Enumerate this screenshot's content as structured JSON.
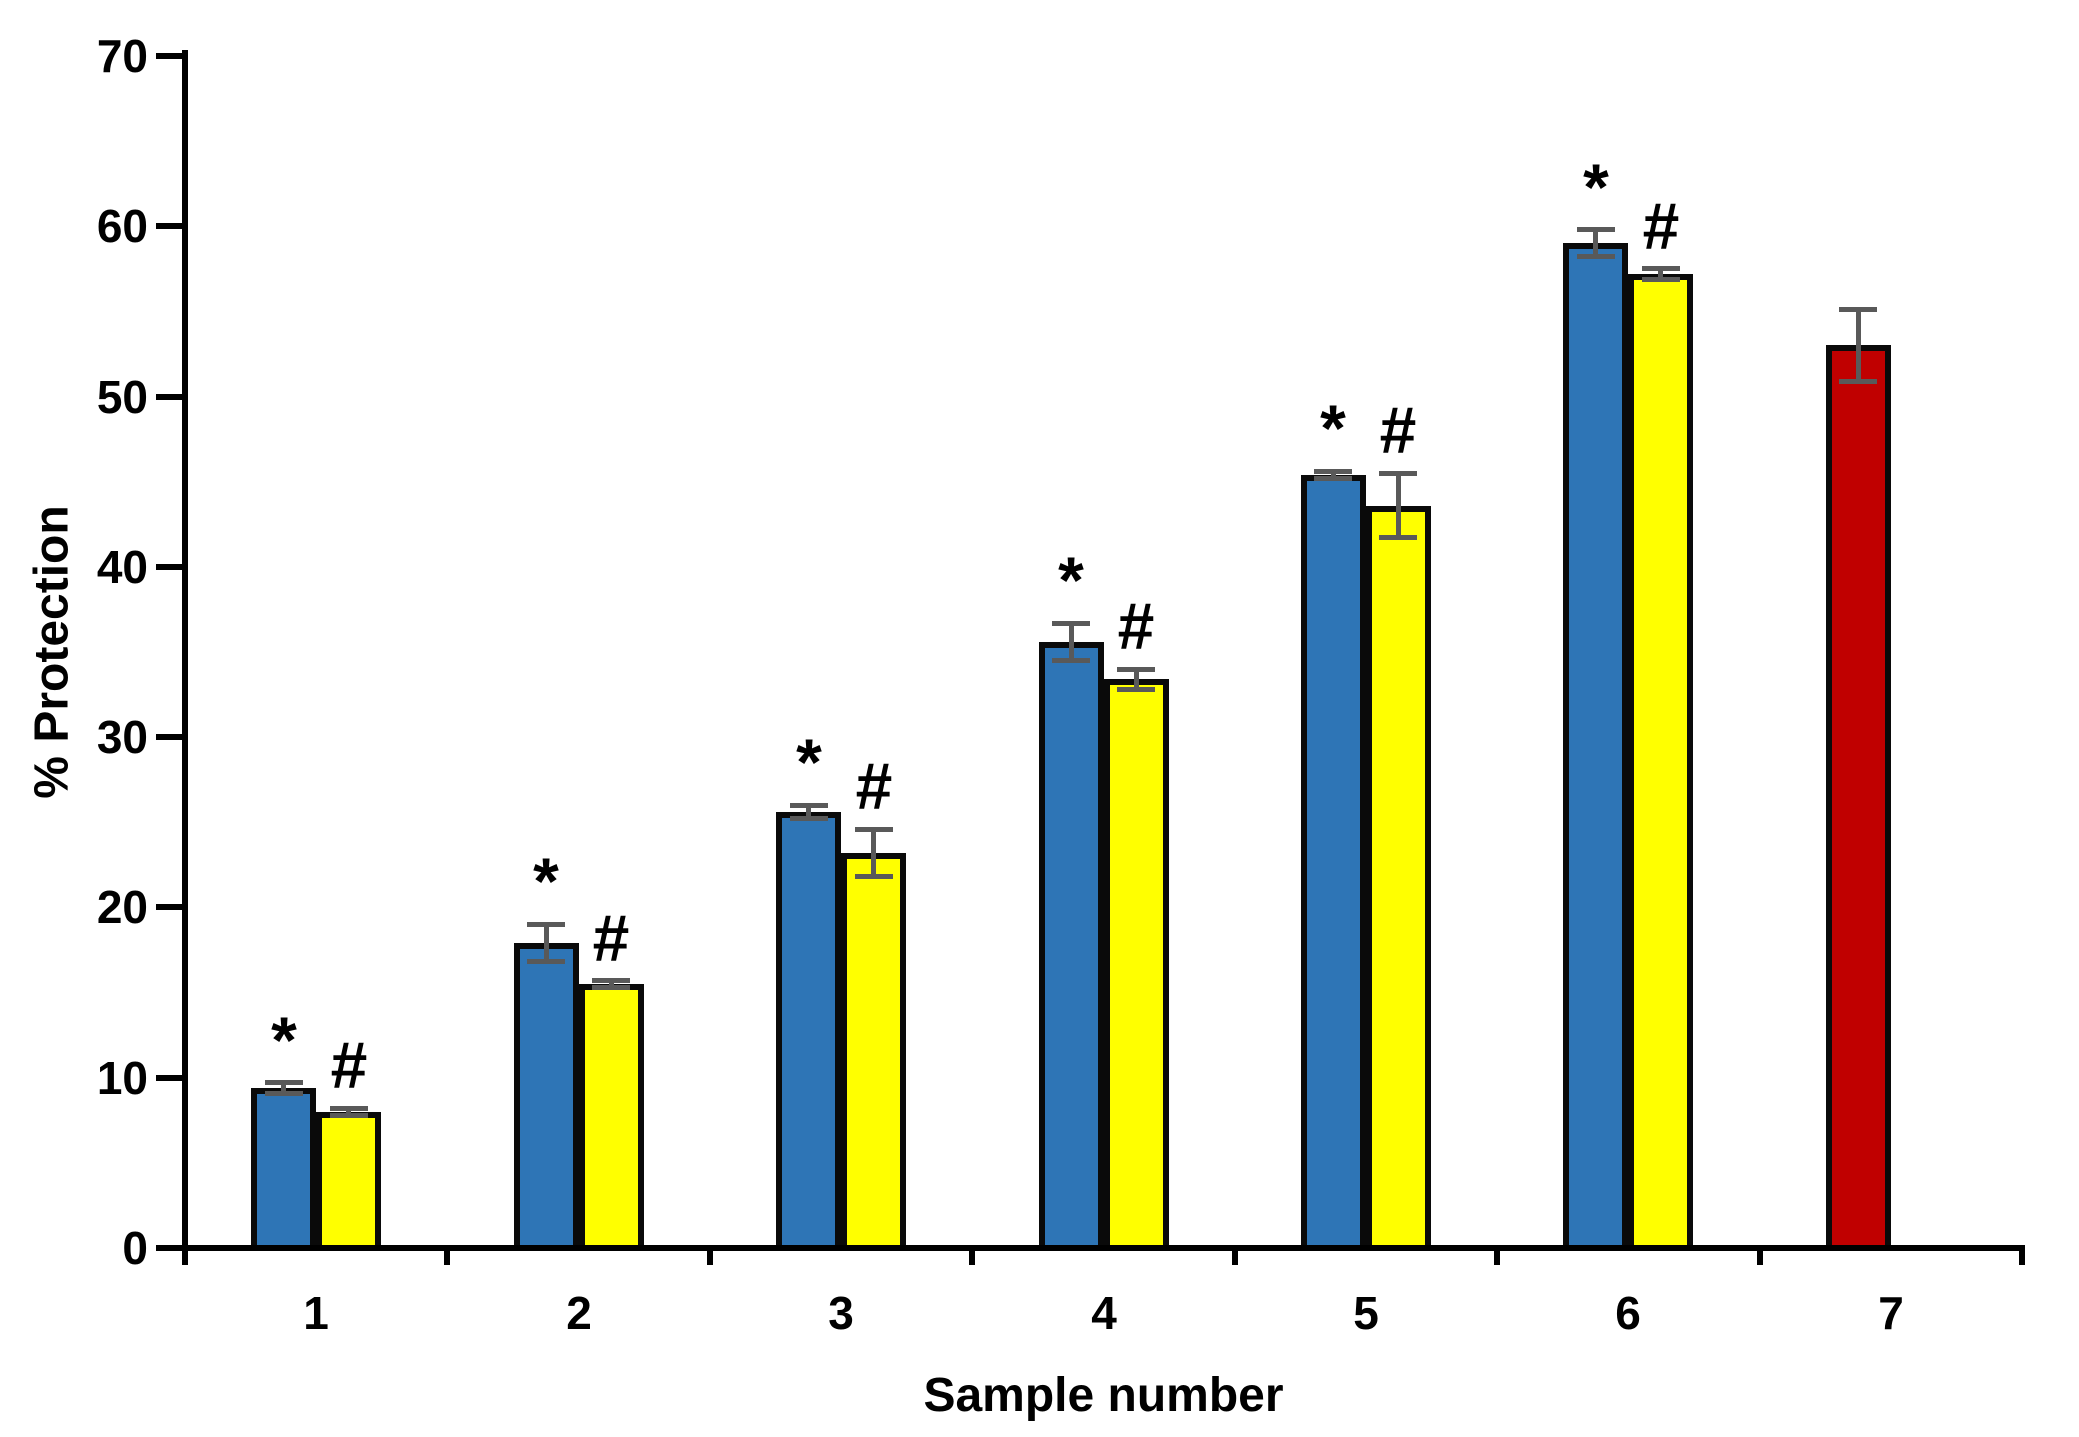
{
  "chart_data": {
    "type": "bar",
    "title": "",
    "ylabel": "% Protection",
    "xlabel": "Sample number",
    "ylim": [
      0,
      70
    ],
    "ytick_step": 10,
    "yticks": [
      "0",
      "10",
      "20",
      "30",
      "40",
      "50",
      "60",
      "70"
    ],
    "grid": false,
    "legend": "none",
    "series_colors": {
      "blue": "#2E75B6",
      "yellow": "#FFFF00",
      "red": "#C00000"
    },
    "bar_border_color": "#0A0A0A",
    "error_bar_color": "#595959",
    "annotation_symbols": {
      "series1": "*",
      "series2": "#"
    },
    "categories": [
      {
        "label": "1",
        "bars": [
          {
            "series": "blue",
            "value": 9.4,
            "error": 0.3,
            "annotation": "*"
          },
          {
            "series": "yellow",
            "value": 8.0,
            "error": 0.2,
            "annotation": "#"
          }
        ]
      },
      {
        "label": "2",
        "bars": [
          {
            "series": "blue",
            "value": 17.9,
            "error": 1.1,
            "annotation": "*"
          },
          {
            "series": "yellow",
            "value": 15.5,
            "error": 0.2,
            "annotation": "#"
          }
        ]
      },
      {
        "label": "3",
        "bars": [
          {
            "series": "blue",
            "value": 25.6,
            "error": 0.4,
            "annotation": "*"
          },
          {
            "series": "yellow",
            "value": 23.2,
            "error": 1.4,
            "annotation": "#"
          }
        ]
      },
      {
        "label": "4",
        "bars": [
          {
            "series": "blue",
            "value": 35.6,
            "error": 1.1,
            "annotation": "*"
          },
          {
            "series": "yellow",
            "value": 33.4,
            "error": 0.6,
            "annotation": "#"
          }
        ]
      },
      {
        "label": "5",
        "bars": [
          {
            "series": "blue",
            "value": 45.4,
            "error": 0.2,
            "annotation": "*"
          },
          {
            "series": "yellow",
            "value": 43.6,
            "error": 1.9,
            "annotation": "#"
          }
        ]
      },
      {
        "label": "6",
        "bars": [
          {
            "series": "blue",
            "value": 59.0,
            "error": 0.8,
            "annotation": "*"
          },
          {
            "series": "yellow",
            "value": 57.2,
            "error": 0.3,
            "annotation": "#"
          }
        ]
      },
      {
        "label": "7",
        "bars": [
          {
            "series": "red",
            "value": 53.0,
            "error": 2.1,
            "annotation": ""
          }
        ]
      }
    ]
  }
}
